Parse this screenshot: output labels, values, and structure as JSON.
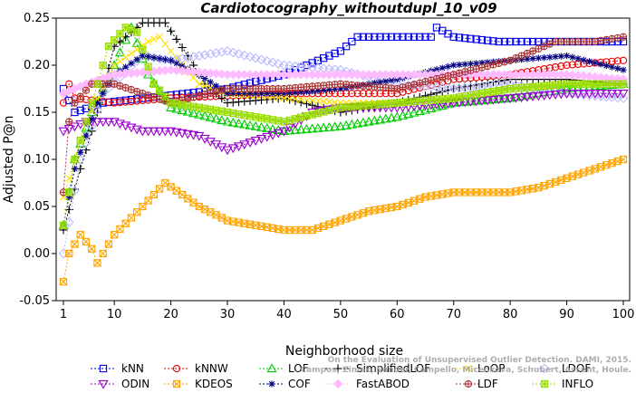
{
  "chart_data": {
    "type": "line",
    "title": "Cardiotocography_withoutdupl_10_v09",
    "xlabel": "Neighborhood size",
    "ylabel": "Adjusted P@n",
    "xlim": [
      0,
      100
    ],
    "ylim": [
      -0.05,
      0.25
    ],
    "x_ticks": [
      1,
      10,
      20,
      30,
      40,
      50,
      60,
      70,
      80,
      90,
      100
    ],
    "y_ticks": [
      -0.05,
      0.0,
      0.05,
      0.1,
      0.15,
      0.2,
      0.25
    ],
    "y_tick_labels": [
      "-0.05",
      "0.00",
      "0.05",
      "0.10",
      "0.15",
      "0.20",
      "0.25"
    ],
    "grid": false,
    "legend_position": "bottom",
    "watermark": "Campos, Zimek, Sander, Campello, Micenkova, Schubert, Assent, Houle. On the Evaluation of Unsupervised Outlier Detection. DAMI, 2015.",
    "series": [
      {
        "name": "kNN",
        "color": "#0000ee",
        "marker": "square",
        "anchors": [
          [
            1,
            0.175
          ],
          [
            3,
            0.15
          ],
          [
            8,
            0.16
          ],
          [
            30,
            0.175
          ],
          [
            40,
            0.19
          ],
          [
            50,
            0.215
          ],
          [
            53,
            0.23
          ],
          [
            66,
            0.23
          ],
          [
            67,
            0.24
          ],
          [
            70,
            0.23
          ],
          [
            78,
            0.225
          ],
          [
            90,
            0.225
          ],
          [
            100,
            0.225
          ]
        ]
      },
      {
        "name": "kNNW",
        "color": "#ee0000",
        "marker": "circle",
        "anchors": [
          [
            1,
            0.16
          ],
          [
            2,
            0.18
          ],
          [
            3,
            0.165
          ],
          [
            10,
            0.16
          ],
          [
            20,
            0.165
          ],
          [
            40,
            0.17
          ],
          [
            60,
            0.17
          ],
          [
            70,
            0.185
          ],
          [
            80,
            0.19
          ],
          [
            90,
            0.2
          ],
          [
            100,
            0.205
          ]
        ]
      },
      {
        "name": "LOF",
        "color": "#00cc00",
        "marker": "triangle-up",
        "anchors": [
          [
            1,
            0.03
          ],
          [
            3,
            0.1
          ],
          [
            6,
            0.15
          ],
          [
            10,
            0.2
          ],
          [
            13,
            0.24
          ],
          [
            16,
            0.19
          ],
          [
            20,
            0.155
          ],
          [
            30,
            0.14
          ],
          [
            40,
            0.13
          ],
          [
            50,
            0.135
          ],
          [
            60,
            0.145
          ],
          [
            70,
            0.16
          ],
          [
            80,
            0.165
          ],
          [
            90,
            0.175
          ],
          [
            100,
            0.18
          ]
        ]
      },
      {
        "name": "SimplifiedLOF",
        "color": "#000000",
        "marker": "plus",
        "anchors": [
          [
            1,
            0.025
          ],
          [
            4,
            0.09
          ],
          [
            7,
            0.15
          ],
          [
            10,
            0.22
          ],
          [
            15,
            0.245
          ],
          [
            19,
            0.245
          ],
          [
            23,
            0.21
          ],
          [
            26,
            0.18
          ],
          [
            30,
            0.16
          ],
          [
            40,
            0.165
          ],
          [
            50,
            0.15
          ],
          [
            60,
            0.16
          ],
          [
            70,
            0.175
          ],
          [
            80,
            0.185
          ],
          [
            90,
            0.185
          ],
          [
            100,
            0.18
          ]
        ]
      },
      {
        "name": "LoOP",
        "color": "#ffe000",
        "marker": "x",
        "anchors": [
          [
            1,
            0.06
          ],
          [
            5,
            0.14
          ],
          [
            10,
            0.2
          ],
          [
            16,
            0.225
          ],
          [
            18,
            0.23
          ],
          [
            22,
            0.2
          ],
          [
            25,
            0.18
          ],
          [
            30,
            0.17
          ],
          [
            40,
            0.165
          ],
          [
            50,
            0.16
          ],
          [
            60,
            0.16
          ],
          [
            70,
            0.165
          ],
          [
            80,
            0.175
          ],
          [
            90,
            0.18
          ],
          [
            100,
            0.18
          ]
        ]
      },
      {
        "name": "LDOF",
        "color": "#bbbbff",
        "marker": "diamond",
        "anchors": [
          [
            1,
            0.0
          ],
          [
            4,
            0.1
          ],
          [
            8,
            0.17
          ],
          [
            15,
            0.21
          ],
          [
            20,
            0.205
          ],
          [
            30,
            0.215
          ],
          [
            40,
            0.2
          ],
          [
            50,
            0.195
          ],
          [
            60,
            0.18
          ],
          [
            70,
            0.175
          ],
          [
            80,
            0.18
          ],
          [
            90,
            0.17
          ],
          [
            100,
            0.165
          ]
        ]
      },
      {
        "name": "ODIN",
        "color": "#9900cc",
        "marker": "triangle-down",
        "anchors": [
          [
            1,
            0.13
          ],
          [
            5,
            0.14
          ],
          [
            10,
            0.14
          ],
          [
            15,
            0.13
          ],
          [
            20,
            0.13
          ],
          [
            25,
            0.125
          ],
          [
            30,
            0.11
          ],
          [
            35,
            0.12
          ],
          [
            40,
            0.13
          ],
          [
            45,
            0.15
          ],
          [
            50,
            0.155
          ],
          [
            60,
            0.155
          ],
          [
            70,
            0.16
          ],
          [
            80,
            0.165
          ],
          [
            90,
            0.17
          ],
          [
            100,
            0.17
          ]
        ]
      },
      {
        "name": "KDEOS",
        "color": "#ffa500",
        "marker": "boxed-x",
        "anchors": [
          [
            1,
            -0.03
          ],
          [
            2,
            0.0
          ],
          [
            4,
            0.02
          ],
          [
            6,
            0.005
          ],
          [
            7,
            -0.01
          ],
          [
            10,
            0.02
          ],
          [
            15,
            0.05
          ],
          [
            19,
            0.075
          ],
          [
            25,
            0.05
          ],
          [
            30,
            0.035
          ],
          [
            40,
            0.025
          ],
          [
            45,
            0.025
          ],
          [
            50,
            0.035
          ],
          [
            55,
            0.045
          ],
          [
            60,
            0.05
          ],
          [
            65,
            0.06
          ],
          [
            70,
            0.065
          ],
          [
            80,
            0.065
          ],
          [
            85,
            0.07
          ],
          [
            90,
            0.08
          ],
          [
            95,
            0.09
          ],
          [
            100,
            0.1
          ]
        ]
      },
      {
        "name": "COF",
        "color": "#000080",
        "marker": "asterisk",
        "anchors": [
          [
            1,
            0.03
          ],
          [
            3,
            0.09
          ],
          [
            7,
            0.16
          ],
          [
            10,
            0.19
          ],
          [
            15,
            0.21
          ],
          [
            20,
            0.205
          ],
          [
            25,
            0.19
          ],
          [
            30,
            0.17
          ],
          [
            40,
            0.17
          ],
          [
            50,
            0.175
          ],
          [
            60,
            0.185
          ],
          [
            70,
            0.2
          ],
          [
            80,
            0.205
          ],
          [
            90,
            0.21
          ],
          [
            100,
            0.195
          ]
        ]
      },
      {
        "name": "FastABOD",
        "color": "#ffbbff",
        "marker": "diamond-filled",
        "anchors": [
          [
            1,
            0.17
          ],
          [
            5,
            0.18
          ],
          [
            10,
            0.19
          ],
          [
            20,
            0.195
          ],
          [
            30,
            0.19
          ],
          [
            40,
            0.19
          ],
          [
            50,
            0.19
          ],
          [
            60,
            0.19
          ],
          [
            70,
            0.19
          ],
          [
            80,
            0.19
          ],
          [
            90,
            0.19
          ],
          [
            100,
            0.185
          ]
        ]
      },
      {
        "name": "LDF",
        "color": "#aa3333",
        "marker": "circle-plus",
        "anchors": [
          [
            1,
            0.065
          ],
          [
            2,
            0.14
          ],
          [
            3,
            0.16
          ],
          [
            6,
            0.18
          ],
          [
            10,
            0.18
          ],
          [
            20,
            0.16
          ],
          [
            30,
            0.175
          ],
          [
            40,
            0.175
          ],
          [
            50,
            0.18
          ],
          [
            60,
            0.175
          ],
          [
            70,
            0.19
          ],
          [
            80,
            0.205
          ],
          [
            88,
            0.225
          ],
          [
            95,
            0.225
          ],
          [
            100,
            0.23
          ]
        ]
      },
      {
        "name": "INFLO",
        "color": "#99dd00",
        "marker": "boxed-star",
        "anchors": [
          [
            1,
            0.03
          ],
          [
            3,
            0.1
          ],
          [
            6,
            0.16
          ],
          [
            9,
            0.22
          ],
          [
            12,
            0.24
          ],
          [
            14,
            0.235
          ],
          [
            17,
            0.18
          ],
          [
            20,
            0.16
          ],
          [
            30,
            0.15
          ],
          [
            40,
            0.14
          ],
          [
            50,
            0.155
          ],
          [
            60,
            0.16
          ],
          [
            70,
            0.165
          ],
          [
            80,
            0.175
          ],
          [
            90,
            0.18
          ],
          [
            100,
            0.18
          ]
        ]
      }
    ]
  }
}
